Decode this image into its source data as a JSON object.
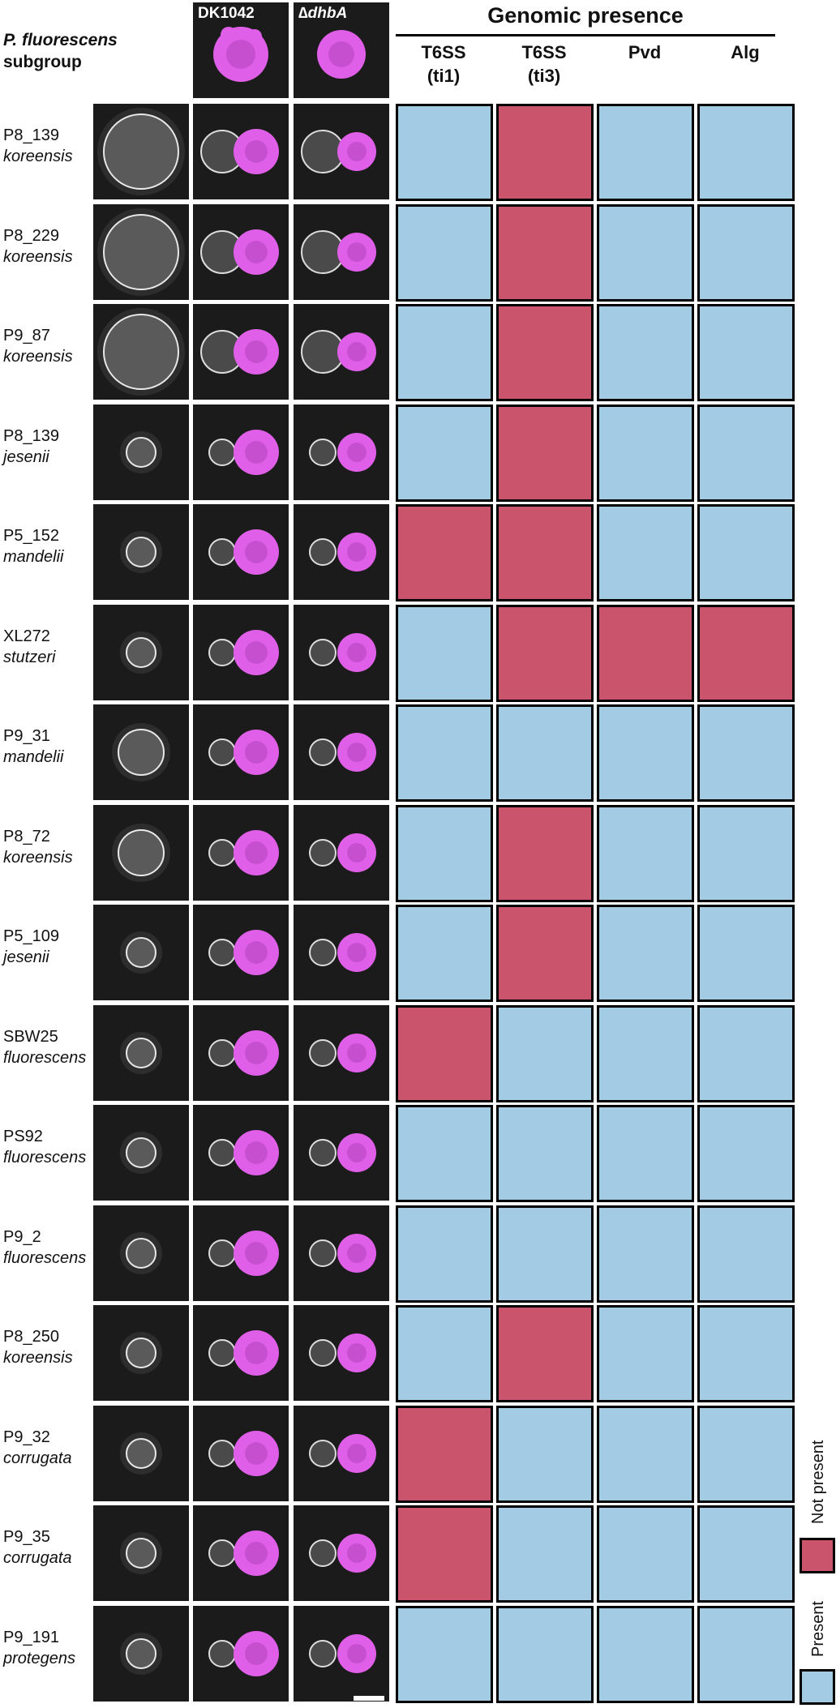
{
  "header": {
    "group_label_line1": "P. fluorescens",
    "group_label_line2": "subgroup",
    "col_dk": "DK1042",
    "col_dhba": "∆dhbA",
    "genomic_title": "Genomic presence"
  },
  "genes": [
    {
      "line1": "T6SS",
      "line2": "(ti1)"
    },
    {
      "line1": "T6SS",
      "line2": "(ti3)"
    },
    {
      "line1": "Pvd",
      "line2": ""
    },
    {
      "line1": "Alg",
      "line2": ""
    }
  ],
  "colors": {
    "present": "#a3cbe3",
    "not_present": "#c9546b",
    "bacillus": "#e05fe8",
    "plate": "#1b1b1b"
  },
  "legend": {
    "not_present": "Not present",
    "present": "Present"
  },
  "strains": [
    {
      "id": "P8_139",
      "species": "koreensis",
      "genes": [
        1,
        0,
        1,
        1
      ]
    },
    {
      "id": "P8_229",
      "species": "koreensis",
      "genes": [
        1,
        0,
        1,
        1
      ]
    },
    {
      "id": "P9_87",
      "species": "koreensis",
      "genes": [
        1,
        0,
        1,
        1
      ]
    },
    {
      "id": "P8_139",
      "species": "jesenii",
      "genes": [
        1,
        0,
        1,
        1
      ]
    },
    {
      "id": "P5_152",
      "species": "mandelii",
      "genes": [
        0,
        0,
        1,
        1
      ]
    },
    {
      "id": "XL272",
      "species": "stutzeri",
      "genes": [
        1,
        0,
        0,
        0
      ]
    },
    {
      "id": "P9_31",
      "species": "mandelii",
      "genes": [
        1,
        1,
        1,
        1
      ]
    },
    {
      "id": "P8_72",
      "species": "koreensis",
      "genes": [
        1,
        0,
        1,
        1
      ]
    },
    {
      "id": "P5_109",
      "species": "jesenii",
      "genes": [
        1,
        0,
        1,
        1
      ]
    },
    {
      "id": "SBW25",
      "species": "fluorescens",
      "genes": [
        0,
        1,
        1,
        1
      ]
    },
    {
      "id": "PS92",
      "species": "fluorescens",
      "genes": [
        1,
        1,
        1,
        1
      ]
    },
    {
      "id": "P9_2",
      "species": "fluorescens",
      "genes": [
        1,
        1,
        1,
        1
      ]
    },
    {
      "id": "P8_250",
      "species": "koreensis",
      "genes": [
        1,
        0,
        1,
        1
      ]
    },
    {
      "id": "P9_32",
      "species": "corrugata",
      "genes": [
        0,
        1,
        1,
        1
      ]
    },
    {
      "id": "P9_35",
      "species": "corrugata",
      "genes": [
        0,
        1,
        1,
        1
      ]
    },
    {
      "id": "P9_191",
      "species": "protegens",
      "genes": [
        1,
        1,
        1,
        1
      ]
    }
  ]
}
